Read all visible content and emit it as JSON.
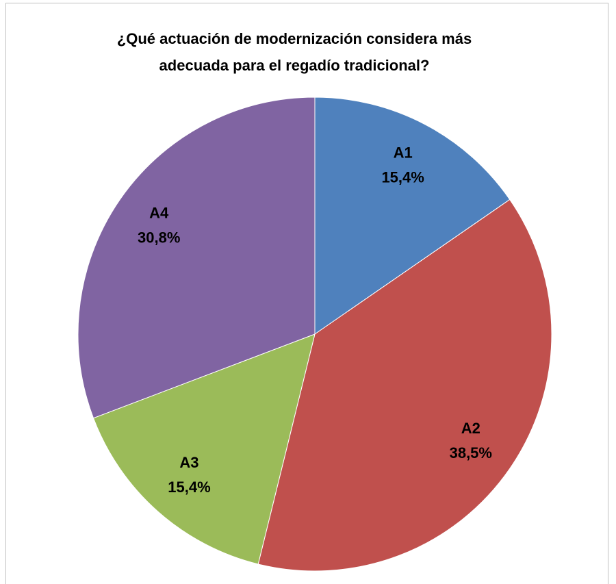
{
  "chart_data": {
    "type": "pie",
    "title": [
      "¿Qué actuación de modernización considera más",
      "adecuada para el regadío tradicional?"
    ],
    "categories": [
      "A1",
      "A2",
      "A3",
      "A4"
    ],
    "values": [
      15.4,
      38.5,
      15.4,
      30.8
    ],
    "value_labels": [
      "15,4%",
      "38,5%",
      "15,4%",
      "30,8%"
    ],
    "colors": [
      "#4f81bd",
      "#c0504d",
      "#9bbb59",
      "#8064a2"
    ]
  }
}
